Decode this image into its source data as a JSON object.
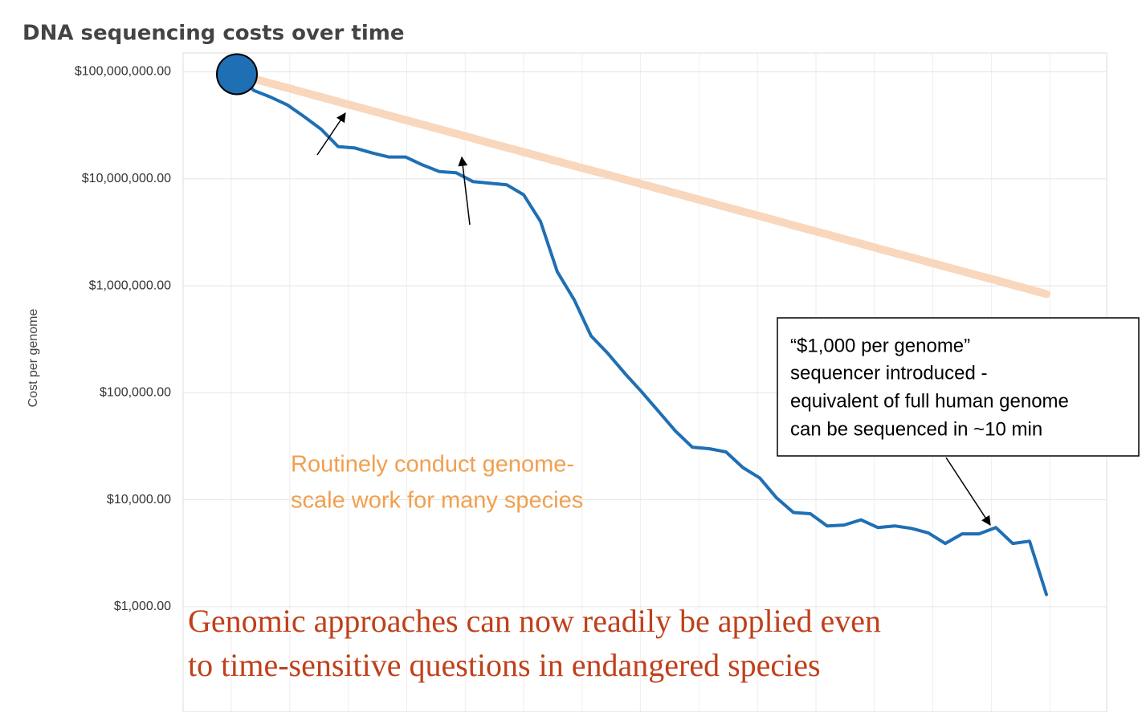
{
  "chart_data": {
    "type": "line",
    "title": "DNA sequencing costs over time",
    "ylabel": "Cost per genome",
    "log_y": true,
    "grid": true,
    "categories": [
      null,
      null,
      null,
      null,
      null,
      null,
      null,
      null,
      null,
      null,
      null,
      null,
      null,
      null,
      null,
      null,
      null,
      null,
      null,
      null,
      null,
      null,
      null,
      null,
      null,
      null,
      null,
      null,
      null,
      null,
      null,
      null,
      null,
      null,
      null,
      null,
      null,
      null,
      null,
      null,
      null,
      null,
      null,
      null,
      null,
      null,
      null,
      null,
      null
    ],
    "series": [
      {
        "color": "#f8d7bd",
        "values": [
          95000000,
          86100000,
          78000000,
          70700000,
          64000000,
          58000000,
          52600000,
          47600000,
          43200000,
          39100000,
          35400000,
          32100000,
          29100000,
          26400000,
          23900000,
          21600000,
          19600000,
          17800000,
          16100000,
          14600000,
          13200000,
          12000000,
          10900000,
          9850000,
          8930000,
          8090000,
          7330000,
          6640000,
          6020000,
          5450000,
          4940000,
          4480000,
          4060000,
          3670000,
          3330000,
          3020000,
          2730000,
          2480000,
          2240000,
          2030000,
          1840000,
          1670000,
          1510000,
          1370000,
          1240000,
          1130000,
          1020000,
          924000,
          837000
        ]
      },
      {
        "color": "#1f6fb4",
        "values": [
          95000000,
          67000000,
          58000000,
          49000000,
          38000000,
          29000000,
          20000000,
          19400000,
          17500000,
          16000000,
          16000000,
          13500000,
          11700000,
          11400000,
          9400000,
          9100000,
          8800000,
          7100000,
          4000000,
          1350000,
          740000,
          340000,
          233000,
          152000,
          102000,
          67000,
          44000,
          31000,
          30000,
          28000,
          20000,
          16000,
          10400,
          7600,
          7400,
          5700,
          5800,
          6500,
          5500,
          5700,
          5400,
          4900,
          3900,
          4800,
          4800,
          5500,
          3900,
          4100,
          1300
        ]
      }
    ],
    "ylim": [
      130,
      150000000
    ],
    "yticks": [
      {
        "value": 100000000,
        "label": "$100,000,000.00"
      },
      {
        "value": 10000000,
        "label": "$10,000,000.00"
      },
      {
        "value": 1000000,
        "label": "$1,000,000.00"
      },
      {
        "value": 100000,
        "label": "$100,000.00"
      },
      {
        "value": 10000,
        "label": "$10,000.00"
      },
      {
        "value": 1000,
        "label": "$1,000.00"
      }
    ],
    "annotations": [
      [
        "“$1,000 per genome”",
        "sequencer introduced -",
        "equivalent of full human genome",
        "can be sequenced in ~10 min"
      ],
      [
        "Routinely conduct genome-",
        "scale work for many species"
      ],
      [
        "Genomic approaches can now readily be applied even",
        "to time-sensitive questions in endangered species"
      ]
    ]
  }
}
